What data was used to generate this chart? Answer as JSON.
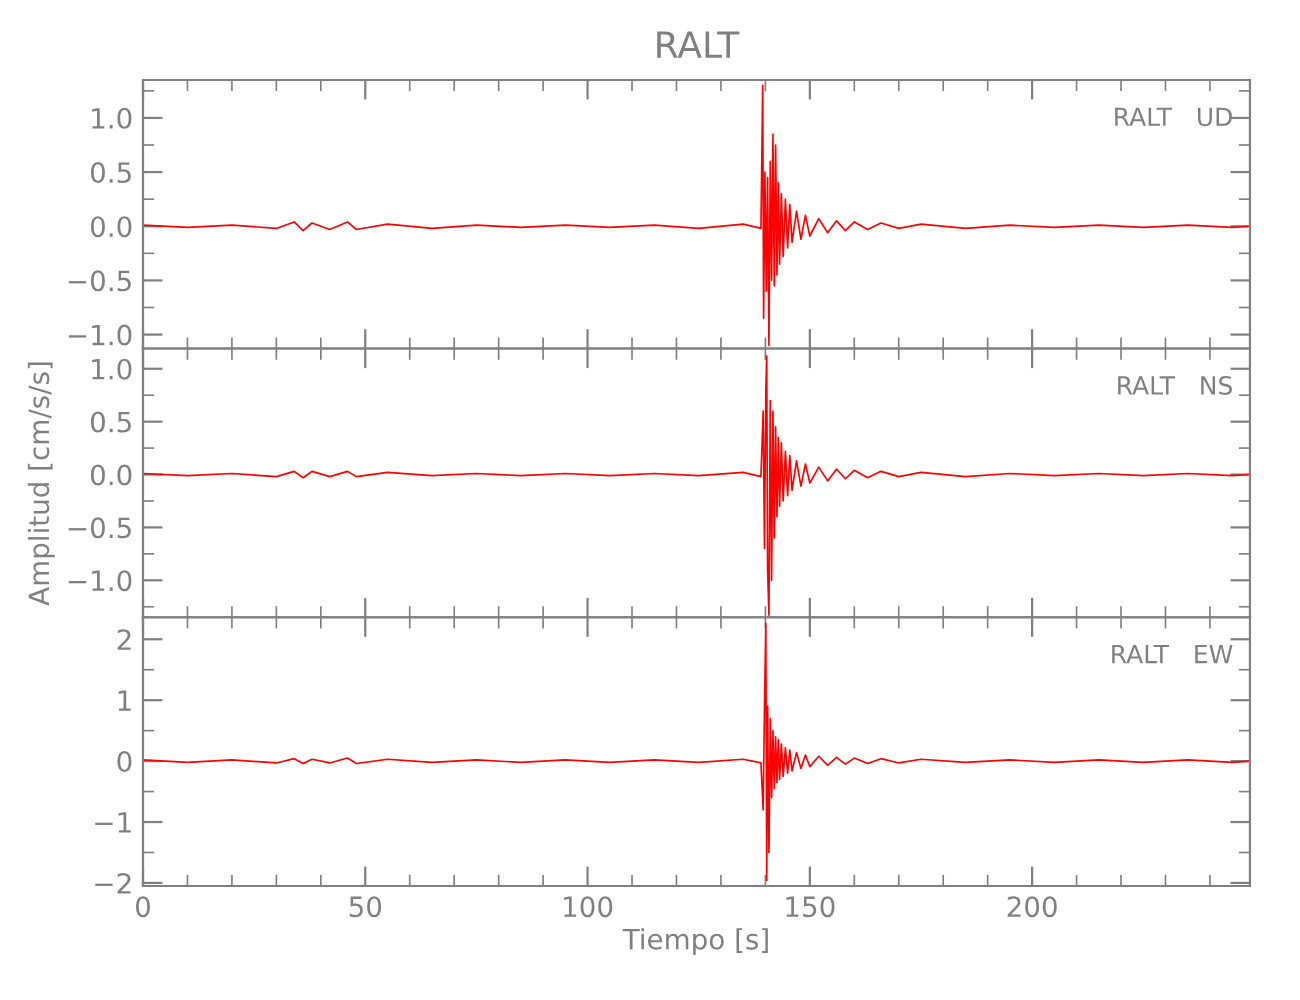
{
  "chart_data": [
    {
      "type": "line",
      "title": "RALT",
      "annotations": [
        "RALT   UD"
      ],
      "tick_labels": "y",
      "x": [
        0,
        10,
        20,
        30,
        34,
        36,
        38,
        42,
        46,
        48,
        55,
        65,
        75,
        85,
        95,
        105,
        115,
        125,
        135,
        139,
        139.4,
        139.6,
        139.9,
        140.2,
        140.5,
        140.8,
        141.1,
        141.4,
        141.7,
        142.0,
        142.3,
        142.6,
        142.9,
        143.2,
        143.6,
        144.0,
        144.5,
        145,
        145.5,
        146,
        147,
        148,
        149,
        150,
        152,
        154,
        156,
        158,
        160,
        163,
        166,
        170,
        175,
        185,
        195,
        205,
        215,
        225,
        235,
        245,
        249
      ],
      "series": [
        {
          "color": "#ff0000",
          "values": [
            0.01,
            -0.01,
            0.01,
            -0.02,
            0.04,
            -0.04,
            0.03,
            -0.03,
            0.04,
            -0.03,
            0.02,
            -0.02,
            0.01,
            -0.01,
            0.01,
            -0.01,
            0.01,
            -0.02,
            0.02,
            -0.02,
            1.3,
            -0.85,
            0.5,
            -0.6,
            0.45,
            -1.1,
            0.6,
            -0.5,
            0.85,
            -0.55,
            0.75,
            -0.45,
            0.4,
            -0.35,
            0.3,
            -0.28,
            0.25,
            -0.2,
            0.2,
            -0.15,
            0.14,
            -0.12,
            0.1,
            -0.09,
            0.07,
            -0.06,
            0.05,
            -0.04,
            0.04,
            -0.03,
            0.03,
            -0.02,
            0.02,
            -0.02,
            0.01,
            -0.01,
            0.01,
            -0.01,
            0.01,
            -0.01,
            0.0
          ]
        }
      ],
      "xlim": [
        0,
        249
      ],
      "xticks": [
        0,
        50,
        100,
        150,
        200
      ],
      "ylim": [
        -1.13,
        1.35
      ],
      "yticks": [
        {
          "value": -1.0,
          "label": "−1.0"
        },
        {
          "value": -0.5,
          "label": "−0.5"
        },
        {
          "value": 0,
          "label": "0.0"
        },
        0.5,
        {
          "value": 1,
          "label": "1.0"
        }
      ]
    },
    {
      "type": "line",
      "annotations": [
        "RALT   NS"
      ],
      "tick_labels": "y",
      "ylabel": "Amplitud [cm/s/s]",
      "x": [
        0,
        10,
        20,
        30,
        34,
        36,
        38,
        42,
        46,
        48,
        55,
        65,
        75,
        85,
        95,
        105,
        115,
        125,
        135,
        139,
        139.5,
        139.8,
        140.1,
        140.3,
        140.5,
        140.8,
        141.1,
        141.4,
        141.7,
        142.0,
        142.3,
        142.6,
        142.9,
        143.2,
        143.6,
        144.0,
        144.5,
        145,
        145.5,
        146,
        147,
        148,
        149,
        150,
        152,
        154,
        156,
        158,
        160,
        163,
        166,
        170,
        175,
        185,
        195,
        205,
        215,
        225,
        235,
        245,
        249
      ],
      "series": [
        {
          "color": "#ff0000",
          "values": [
            0.01,
            -0.01,
            0.01,
            -0.02,
            0.03,
            -0.03,
            0.03,
            -0.02,
            0.03,
            -0.02,
            0.02,
            -0.01,
            0.01,
            -0.01,
            0.01,
            -0.01,
            0.01,
            -0.01,
            0.02,
            -0.02,
            0.6,
            -0.7,
            0.8,
            1.12,
            -0.9,
            -1.33,
            0.7,
            -1.0,
            0.6,
            -0.6,
            0.45,
            -0.4,
            0.35,
            -0.3,
            0.3,
            -0.25,
            0.22,
            -0.2,
            0.18,
            -0.15,
            0.13,
            -0.11,
            0.1,
            -0.08,
            0.07,
            -0.06,
            0.05,
            -0.04,
            0.04,
            -0.03,
            0.03,
            -0.02,
            0.02,
            -0.02,
            0.01,
            -0.01,
            0.01,
            -0.01,
            0.01,
            -0.01,
            0.0
          ]
        }
      ],
      "xlim": [
        0,
        249
      ],
      "xticks": [
        0,
        50,
        100,
        150,
        200
      ],
      "ylim": [
        -1.35,
        1.19
      ],
      "yticks": [
        {
          "value": -1.0,
          "label": "−1.0"
        },
        {
          "value": -0.5,
          "label": "−0.5"
        },
        {
          "value": 0,
          "label": "0.0"
        },
        0.5,
        {
          "value": 1,
          "label": "1.0"
        }
      ]
    },
    {
      "type": "line",
      "annotations": [
        "RALT   EW"
      ],
      "xlabel": "Tiempo [s]",
      "x": [
        0,
        10,
        20,
        30,
        34,
        36,
        38,
        42,
        46,
        48,
        55,
        65,
        75,
        85,
        95,
        105,
        115,
        125,
        135,
        139,
        139.5,
        139.8,
        140.1,
        140.3,
        140.5,
        140.8,
        141.1,
        141.4,
        141.7,
        142.0,
        142.3,
        142.6,
        142.9,
        143.2,
        143.6,
        144.0,
        144.5,
        145,
        145.5,
        146,
        147,
        148,
        149,
        150,
        152,
        154,
        156,
        158,
        160,
        163,
        166,
        170,
        175,
        185,
        195,
        205,
        215,
        225,
        235,
        245,
        249
      ],
      "series": [
        {
          "color": "#ff0000",
          "values": [
            0.02,
            -0.02,
            0.02,
            -0.03,
            0.04,
            -0.04,
            0.03,
            -0.03,
            0.05,
            -0.04,
            0.03,
            -0.02,
            0.02,
            -0.02,
            0.02,
            -0.02,
            0.02,
            -0.02,
            0.03,
            -0.03,
            -0.8,
            0.9,
            2.26,
            -1.96,
            0.9,
            -1.5,
            0.7,
            -0.6,
            0.5,
            -0.45,
            0.4,
            -0.35,
            0.35,
            -0.3,
            0.28,
            -0.25,
            0.22,
            -0.2,
            0.18,
            -0.16,
            0.14,
            -0.12,
            0.1,
            -0.09,
            0.08,
            -0.07,
            0.06,
            -0.05,
            0.05,
            -0.04,
            0.04,
            -0.03,
            0.03,
            -0.02,
            0.02,
            -0.02,
            0.02,
            -0.02,
            0.02,
            -0.02,
            0.0
          ]
        }
      ],
      "xlim": [
        0,
        249
      ],
      "xticks": [
        0,
        50,
        100,
        150,
        200
      ],
      "ylim": [
        -2.05,
        2.36
      ],
      "yticks": [
        {
          "value": -2,
          "label": "−2"
        },
        {
          "value": -1,
          "label": "−1"
        },
        0,
        1,
        2
      ]
    }
  ]
}
